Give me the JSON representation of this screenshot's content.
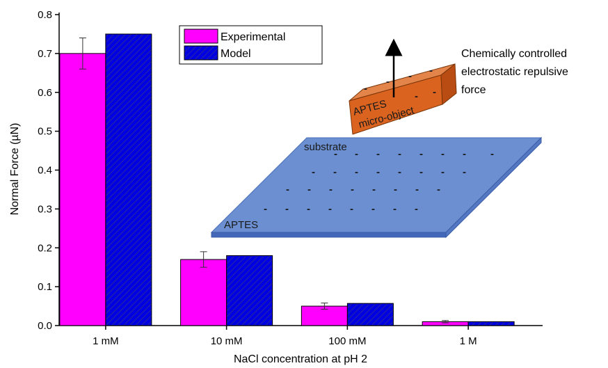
{
  "chart_data": {
    "type": "bar",
    "categories": [
      "1 mM",
      "10 mM",
      "100 mM",
      "1 M"
    ],
    "series": [
      {
        "name": "Experimental",
        "values": [
          0.7,
          0.17,
          0.05,
          0.01
        ],
        "errors": [
          0.04,
          0.02,
          0.008,
          0.003
        ],
        "color": "#ff00ff"
      },
      {
        "name": "Model",
        "values": [
          0.75,
          0.18,
          0.057,
          0.01
        ],
        "color": "#0000e0",
        "hatched": true
      }
    ],
    "title": "",
    "xlabel": "NaCl concentration at pH 2",
    "ylabel": "Normal Force (µN)",
    "ylim": [
      0,
      0.8
    ],
    "yticks": [
      "0.0",
      "0.1",
      "0.2",
      "0.3",
      "0.4",
      "0.5",
      "0.6",
      "0.7",
      "0.8"
    ],
    "grid": false,
    "legend_position": "top-center"
  },
  "illustration": {
    "annotation_lines": [
      "Chemically controlled",
      "electrostatic repulsive",
      "force"
    ],
    "substrate_label": "substrate",
    "substrate_coating_label": "APTES",
    "object_label_lines": [
      "APTES",
      "micro-object"
    ],
    "charge_symbol": "-",
    "substrate_color": "#6b8fd0",
    "object_color": "#d9631f"
  }
}
